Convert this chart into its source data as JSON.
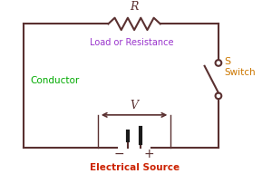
{
  "bg_color": "#ffffff",
  "circuit_color": "#5a3030",
  "battery_color": "#1a1a1a",
  "conductor_label_color": "#00aa00",
  "resistance_label_color": "#9933cc",
  "source_label_color": "#cc2200",
  "switch_label_color": "#cc7700",
  "voltage_label_color": "#5a3030",
  "R_label_color": "#5a3030",
  "conductor_label": "Conductor",
  "resistance_label": "Load or Resistance",
  "source_label": "Electrical Source",
  "switch_label": "Switch",
  "switch_s_label": "S",
  "voltage_label": "V",
  "R_label": "R",
  "minus_label": "−",
  "plus_label": "+"
}
